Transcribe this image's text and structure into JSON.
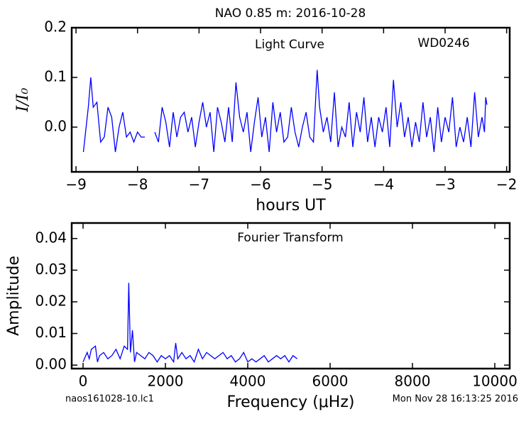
{
  "chart_data": [
    {
      "type": "line",
      "title": "NAO 0.85 m:  2016-10-28",
      "xlabel": "hours UT",
      "ylabel": "I/I₀",
      "annotations": [
        "Light Curve",
        "WD0246"
      ],
      "xlim": [
        -9.07,
        -1.95
      ],
      "xticks": [
        -9,
        -8,
        -7,
        -6,
        -5,
        -4,
        -3,
        -2
      ],
      "ylim": [
        -0.09,
        0.2
      ],
      "yticks": [
        {
          "value": 0,
          "label": "0.0"
        },
        0.1,
        0.2
      ],
      "x": [
        -8.88,
        -8.8,
        -8.76,
        -8.72,
        -8.66,
        -8.6,
        -8.54,
        -8.48,
        -8.42,
        -8.36,
        -8.3,
        -8.24,
        -8.18,
        -8.12,
        -8.06,
        -8.0,
        -7.94,
        -7.88,
        -7.8,
        -7.72,
        -7.66,
        -7.6,
        -7.54,
        -7.48,
        -7.42,
        -7.36,
        -7.3,
        -7.24,
        -7.18,
        -7.12,
        -7.06,
        -7.0,
        -6.94,
        -6.88,
        -6.82,
        -6.76,
        -6.7,
        -6.64,
        -6.58,
        -6.52,
        -6.46,
        -6.4,
        -6.34,
        -6.28,
        -6.22,
        -6.16,
        -6.1,
        -6.04,
        -5.98,
        -5.92,
        -5.86,
        -5.8,
        -5.74,
        -5.68,
        -5.62,
        -5.56,
        -5.5,
        -5.44,
        -5.38,
        -5.32,
        -5.26,
        -5.2,
        -5.14,
        -5.08,
        -5.04,
        -4.98,
        -4.92,
        -4.86,
        -4.8,
        -4.74,
        -4.68,
        -4.62,
        -4.56,
        -4.5,
        -4.44,
        -4.38,
        -4.32,
        -4.26,
        -4.2,
        -4.14,
        -4.08,
        -4.02,
        -3.96,
        -3.9,
        -3.84,
        -3.78,
        -3.72,
        -3.66,
        -3.6,
        -3.54,
        -3.48,
        -3.42,
        -3.36,
        -3.3,
        -3.24,
        -3.18,
        -3.12,
        -3.06,
        -3.0,
        -2.94,
        -2.88,
        -2.82,
        -2.76,
        -2.7,
        -2.64,
        -2.58,
        -2.52,
        -2.46,
        -2.4,
        -2.36,
        -2.34,
        -2.32
      ],
      "series": [
        {
          "color": "#0000ff",
          "values": [
            -0.05,
            0.04,
            0.1,
            0.04,
            0.05,
            -0.03,
            -0.02,
            0.04,
            0.02,
            -0.05,
            0.0,
            0.03,
            -0.02,
            -0.01,
            -0.03,
            -0.01,
            -0.02,
            -0.02,
            null,
            -0.01,
            -0.03,
            0.04,
            0.01,
            -0.04,
            0.03,
            -0.02,
            0.02,
            0.03,
            -0.01,
            0.02,
            -0.04,
            0.01,
            0.05,
            0.0,
            0.03,
            -0.05,
            0.04,
            0.01,
            -0.03,
            0.04,
            -0.03,
            0.09,
            0.02,
            -0.01,
            0.03,
            -0.05,
            0.01,
            0.06,
            -0.02,
            0.02,
            -0.05,
            0.05,
            -0.01,
            0.03,
            -0.03,
            -0.02,
            0.04,
            -0.01,
            -0.04,
            0.0,
            0.03,
            -0.02,
            -0.03,
            0.115,
            0.04,
            -0.01,
            0.02,
            -0.03,
            0.07,
            -0.04,
            0.0,
            -0.02,
            0.05,
            -0.04,
            0.03,
            -0.01,
            0.06,
            -0.03,
            0.02,
            -0.04,
            0.02,
            -0.01,
            0.04,
            -0.04,
            0.095,
            0.0,
            0.05,
            -0.02,
            0.02,
            -0.04,
            0.01,
            -0.03,
            0.05,
            -0.02,
            0.02,
            -0.05,
            0.04,
            -0.03,
            0.02,
            -0.01,
            0.06,
            -0.04,
            0.0,
            -0.03,
            0.02,
            -0.04,
            0.07,
            -0.02,
            0.02,
            -0.01,
            0.06,
            0.045
          ]
        }
      ]
    },
    {
      "type": "line",
      "xlabel": "Frequency (μHz)",
      "ylabel": "Amplitude",
      "annotations": [
        "Fourier Transform"
      ],
      "xlim": [
        -276,
        10362
      ],
      "xticks": [
        0,
        2000,
        4000,
        6000,
        8000,
        10000
      ],
      "ylim": [
        -0.0011,
        0.0449
      ],
      "yticks": [
        {
          "value": 0,
          "label": "0.00"
        },
        {
          "value": 0.01,
          "label": "0.01"
        },
        {
          "value": 0.02,
          "label": "0.02"
        },
        {
          "value": 0.03,
          "label": "0.03"
        },
        {
          "value": 0.04,
          "label": "0.04"
        }
      ],
      "x": [
        0,
        100,
        150,
        200,
        300,
        350,
        400,
        500,
        600,
        700,
        800,
        900,
        1000,
        1080,
        1110,
        1150,
        1200,
        1250,
        1300,
        1400,
        1500,
        1600,
        1700,
        1800,
        1900,
        2000,
        2100,
        2200,
        2250,
        2300,
        2400,
        2500,
        2600,
        2700,
        2800,
        2900,
        3000,
        3100,
        3200,
        3300,
        3400,
        3500,
        3600,
        3700,
        3800,
        3900,
        4000,
        4100,
        4200,
        4300,
        4400,
        4500,
        4600,
        4700,
        4800,
        4900,
        5000,
        5100,
        5200
      ],
      "series": [
        {
          "color": "#0000ff",
          "values": [
            0.001,
            0.004,
            0.002,
            0.005,
            0.006,
            0.001,
            0.003,
            0.004,
            0.002,
            0.003,
            0.005,
            0.002,
            0.006,
            0.005,
            0.026,
            0.004,
            0.011,
            0.001,
            0.004,
            0.003,
            0.002,
            0.004,
            0.003,
            0.001,
            0.003,
            0.002,
            0.003,
            0.001,
            0.007,
            0.002,
            0.004,
            0.002,
            0.003,
            0.001,
            0.005,
            0.002,
            0.004,
            0.003,
            0.002,
            0.003,
            0.004,
            0.002,
            0.003,
            0.001,
            0.002,
            0.004,
            0.001,
            0.002,
            0.001,
            0.002,
            0.003,
            0.001,
            0.002,
            0.003,
            0.002,
            0.003,
            0.001,
            0.003,
            0.002
          ]
        }
      ]
    }
  ],
  "footer": {
    "left": "naos161028-10.lc1",
    "right": "Mon Nov 28 16:13:25 2016"
  }
}
